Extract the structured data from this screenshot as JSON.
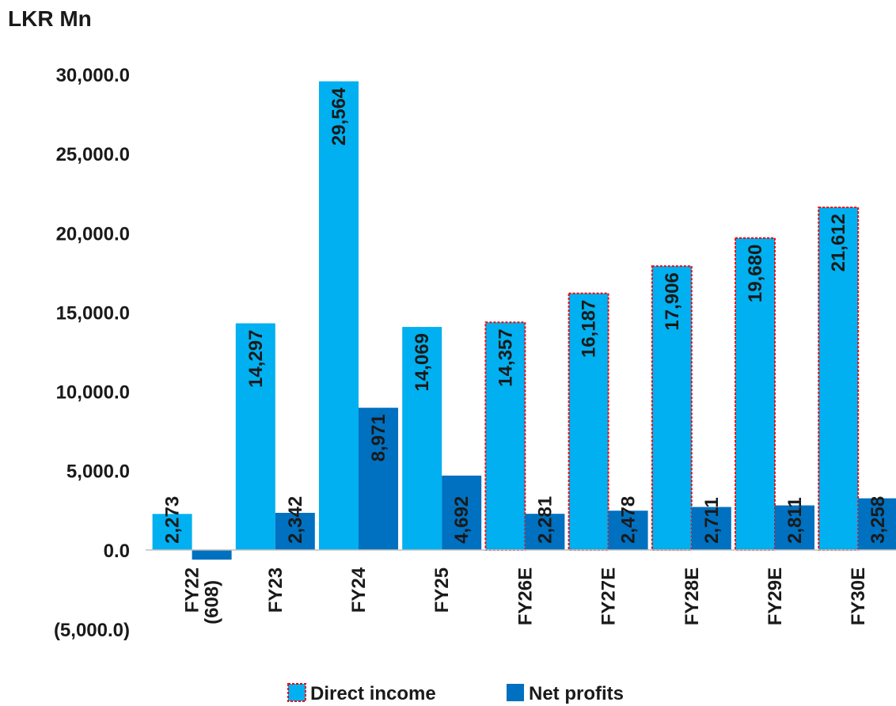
{
  "chart_data": {
    "type": "bar",
    "unit_label": "LKR Mn",
    "categories": [
      "FY22",
      "FY23",
      "FY24",
      "FY25",
      "FY26E",
      "FY27E",
      "FY28E",
      "FY29E",
      "FY30E"
    ],
    "series": [
      {
        "name": "Direct income",
        "color": "#00B0F0",
        "values": [
          2273,
          14297,
          29564,
          14069,
          14357,
          16187,
          17906,
          19680,
          21612
        ],
        "labels": [
          "2,273",
          "14,297",
          "29,564",
          "14,069",
          "14,357",
          "16,187",
          "17,906",
          "19,680",
          "21,612"
        ],
        "estimate_outline_color": "#FF0000"
      },
      {
        "name": "Net profits",
        "color": "#0070C0",
        "values": [
          -608,
          2342,
          8971,
          4692,
          2281,
          2478,
          2711,
          2811,
          3258
        ],
        "labels": [
          "(608)",
          "2,342",
          "8,971",
          "4,692",
          "2,281",
          "2,478",
          "2,711",
          "2,811",
          "3,258"
        ]
      }
    ],
    "estimated_categories": [
      "FY26E",
      "FY27E",
      "FY28E",
      "FY29E",
      "FY30E"
    ],
    "y_ticks": [
      -5000,
      0,
      5000,
      10000,
      15000,
      20000,
      25000,
      30000
    ],
    "y_tick_labels": [
      "(5,000.0)",
      "0.0",
      "5,000.0",
      "10,000.0",
      "15,000.0",
      "20,000.0",
      "25,000.0",
      "30,000.0"
    ],
    "ylim": [
      -5000,
      30000
    ],
    "grid": false,
    "legend_position": "bottom"
  }
}
